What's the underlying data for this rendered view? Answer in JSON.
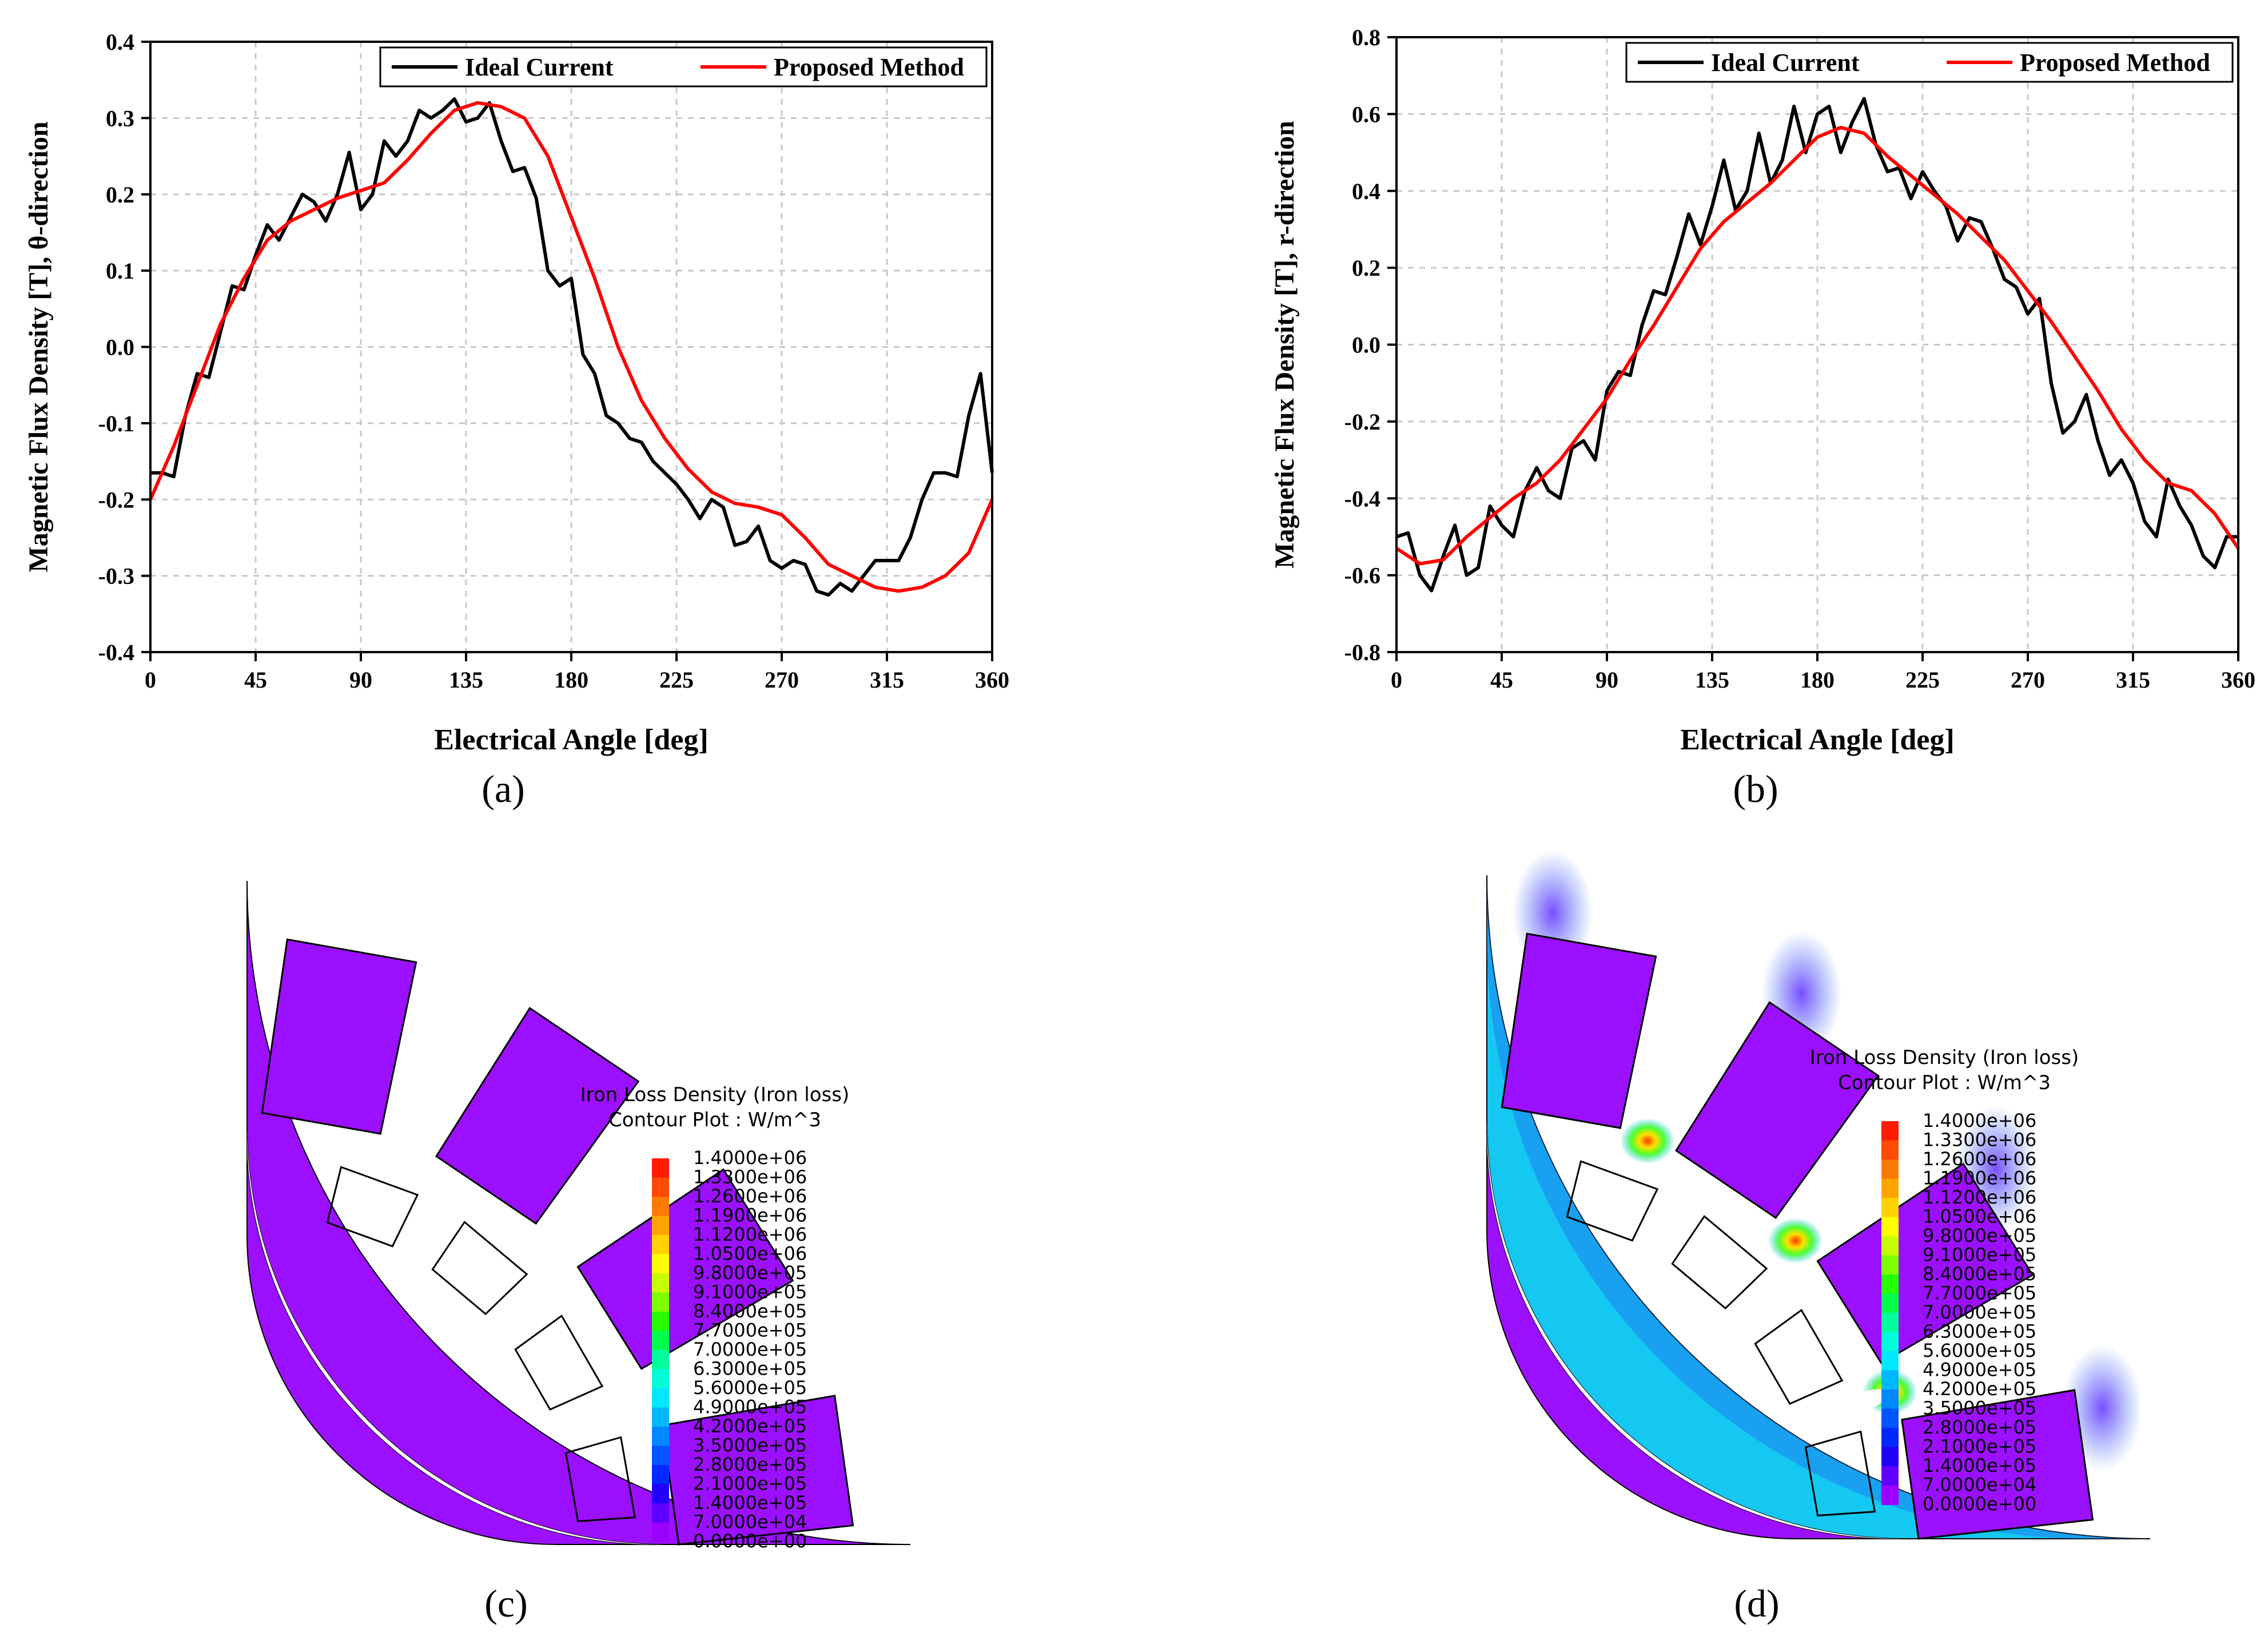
{
  "figure": {
    "panel_labels": [
      "(a)",
      "(b)",
      "(c)",
      "(d)"
    ]
  },
  "chart_data": [
    {
      "type": "line",
      "panel": "(a)",
      "xlabel": "Electrical Angle [deg]",
      "ylabel": "Magnetic Flux Density [T], θ-direction",
      "xlim": [
        0,
        360
      ],
      "ylim": [
        -0.4,
        0.4
      ],
      "xticks": [
        "0",
        "45",
        "90",
        "135",
        "180",
        "225",
        "270",
        "315",
        "360"
      ],
      "yticks": [
        "-0.4",
        "-0.3",
        "-0.2",
        "-0.1",
        "0.0",
        "0.1",
        "0.2",
        "0.3",
        "0.4"
      ],
      "grid": true,
      "legend_position": "top-right",
      "series": [
        {
          "name": "Ideal Current",
          "color": "#000000",
          "x": [
            0,
            5,
            10,
            15,
            20,
            25,
            30,
            35,
            40,
            45,
            50,
            55,
            60,
            65,
            70,
            75,
            80,
            85,
            90,
            95,
            100,
            105,
            110,
            115,
            120,
            125,
            130,
            135,
            140,
            145,
            150,
            155,
            160,
            165,
            170,
            175,
            180,
            185,
            190,
            195,
            200,
            205,
            210,
            215,
            220,
            225,
            230,
            235,
            240,
            245,
            250,
            255,
            260,
            265,
            270,
            275,
            280,
            285,
            290,
            295,
            300,
            305,
            310,
            315,
            320,
            325,
            330,
            335,
            340,
            345,
            350,
            355,
            360
          ],
          "y": [
            -0.165,
            -0.165,
            -0.17,
            -0.09,
            -0.035,
            -0.04,
            0.02,
            0.08,
            0.075,
            0.12,
            0.16,
            0.14,
            0.17,
            0.2,
            0.19,
            0.165,
            0.2,
            0.255,
            0.18,
            0.2,
            0.27,
            0.25,
            0.27,
            0.31,
            0.3,
            0.31,
            0.325,
            0.295,
            0.3,
            0.32,
            0.27,
            0.23,
            0.235,
            0.195,
            0.1,
            0.08,
            0.09,
            -0.01,
            -0.035,
            -0.09,
            -0.1,
            -0.12,
            -0.125,
            -0.15,
            -0.165,
            -0.18,
            -0.2,
            -0.225,
            -0.2,
            -0.21,
            -0.26,
            -0.255,
            -0.235,
            -0.28,
            -0.29,
            -0.28,
            -0.285,
            -0.32,
            -0.325,
            -0.31,
            -0.32,
            -0.3,
            -0.28,
            -0.28,
            -0.28,
            -0.25,
            -0.2,
            -0.165,
            -0.165,
            -0.17,
            -0.09,
            -0.035,
            -0.165
          ]
        },
        {
          "name": "Proposed Method",
          "color": "#ff0000",
          "x": [
            0,
            10,
            20,
            30,
            40,
            50,
            60,
            70,
            80,
            90,
            100,
            110,
            120,
            130,
            140,
            150,
            160,
            170,
            180,
            190,
            200,
            210,
            220,
            230,
            240,
            250,
            260,
            270,
            280,
            290,
            300,
            310,
            320,
            330,
            340,
            350,
            360
          ],
          "y": [
            -0.2,
            -0.13,
            -0.05,
            0.03,
            0.09,
            0.14,
            0.165,
            0.18,
            0.195,
            0.205,
            0.215,
            0.245,
            0.28,
            0.31,
            0.32,
            0.315,
            0.3,
            0.25,
            0.17,
            0.09,
            0.0,
            -0.07,
            -0.12,
            -0.16,
            -0.19,
            -0.205,
            -0.21,
            -0.22,
            -0.25,
            -0.285,
            -0.3,
            -0.315,
            -0.32,
            -0.315,
            -0.3,
            -0.27,
            -0.2
          ]
        }
      ]
    },
    {
      "type": "line",
      "panel": "(b)",
      "xlabel": "Electrical Angle [deg]",
      "ylabel": "Magnetic Flux Density [T], r-direction",
      "xlim": [
        0,
        360
      ],
      "ylim": [
        -0.8,
        0.8
      ],
      "xticks": [
        "0",
        "45",
        "90",
        "135",
        "180",
        "225",
        "270",
        "315",
        "360"
      ],
      "yticks": [
        "-0.8",
        "-0.6",
        "-0.4",
        "-0.2",
        "0.0",
        "0.2",
        "0.4",
        "0.6",
        "0.8"
      ],
      "grid": true,
      "legend_position": "top-right",
      "series": [
        {
          "name": "Ideal Current",
          "color": "#000000",
          "x": [
            0,
            5,
            10,
            15,
            20,
            25,
            30,
            35,
            40,
            45,
            50,
            55,
            60,
            65,
            70,
            75,
            80,
            85,
            90,
            95,
            100,
            105,
            110,
            115,
            120,
            125,
            130,
            135,
            140,
            145,
            150,
            155,
            160,
            165,
            170,
            175,
            180,
            185,
            190,
            195,
            200,
            205,
            210,
            215,
            220,
            225,
            230,
            235,
            240,
            245,
            250,
            255,
            260,
            265,
            270,
            275,
            280,
            285,
            290,
            295,
            300,
            305,
            310,
            315,
            320,
            325,
            330,
            335,
            340,
            345,
            350,
            355,
            360
          ],
          "y": [
            -0.5,
            -0.49,
            -0.6,
            -0.64,
            -0.55,
            -0.47,
            -0.6,
            -0.58,
            -0.42,
            -0.47,
            -0.5,
            -0.38,
            -0.32,
            -0.38,
            -0.4,
            -0.27,
            -0.25,
            -0.3,
            -0.12,
            -0.07,
            -0.08,
            0.05,
            0.14,
            0.13,
            0.23,
            0.34,
            0.26,
            0.36,
            0.48,
            0.35,
            0.4,
            0.55,
            0.42,
            0.48,
            0.62,
            0.5,
            0.6,
            0.62,
            0.5,
            0.58,
            0.64,
            0.52,
            0.45,
            0.46,
            0.38,
            0.45,
            0.4,
            0.36,
            0.27,
            0.33,
            0.32,
            0.25,
            0.17,
            0.15,
            0.08,
            0.12,
            -0.1,
            -0.23,
            -0.2,
            -0.13,
            -0.25,
            -0.34,
            -0.3,
            -0.36,
            -0.46,
            -0.5,
            -0.35,
            -0.42,
            -0.47,
            -0.55,
            -0.58,
            -0.5,
            -0.5
          ]
        },
        {
          "name": "Proposed Method",
          "color": "#ff0000",
          "x": [
            0,
            10,
            20,
            30,
            40,
            50,
            60,
            70,
            80,
            90,
            100,
            110,
            120,
            130,
            140,
            150,
            160,
            170,
            180,
            190,
            200,
            210,
            220,
            230,
            240,
            250,
            260,
            270,
            280,
            290,
            300,
            310,
            320,
            330,
            340,
            350,
            360
          ],
          "y": [
            -0.53,
            -0.57,
            -0.56,
            -0.5,
            -0.45,
            -0.4,
            -0.36,
            -0.3,
            -0.22,
            -0.14,
            -0.04,
            0.05,
            0.15,
            0.25,
            0.32,
            0.37,
            0.42,
            0.48,
            0.54,
            0.565,
            0.55,
            0.49,
            0.44,
            0.39,
            0.34,
            0.28,
            0.22,
            0.14,
            0.06,
            -0.03,
            -0.12,
            -0.22,
            -0.3,
            -0.36,
            -0.38,
            -0.44,
            -0.53
          ]
        }
      ]
    }
  ],
  "contour_plots": [
    {
      "panel": "(c)",
      "legend_title_1": "Iron Loss Density (Iron loss)",
      "legend_title_2": "Contour Plot : W/m^3",
      "levels": [
        "1.4000e+06",
        "1.3300e+06",
        "1.2600e+06",
        "1.1900e+06",
        "1.1200e+06",
        "1.0500e+06",
        "9.8000e+05",
        "9.1000e+05",
        "8.4000e+05",
        "7.7000e+05",
        "7.0000e+05",
        "6.3000e+05",
        "5.6000e+05",
        "4.9000e+05",
        "4.2000e+05",
        "3.5000e+05",
        "2.8000e+05",
        "2.1000e+05",
        "1.4000e+05",
        "7.0000e+04",
        "0.0000e+00"
      ]
    },
    {
      "panel": "(d)",
      "legend_title_1": "Iron Loss Density (Iron loss)",
      "legend_title_2": "Contour Plot : W/m^3",
      "levels": [
        "1.4000e+06",
        "1.3300e+06",
        "1.2600e+06",
        "1.1900e+06",
        "1.1200e+06",
        "1.0500e+06",
        "9.8000e+05",
        "9.1000e+05",
        "8.4000e+05",
        "7.7000e+05",
        "7.0000e+05",
        "6.3000e+05",
        "5.6000e+05",
        "4.9000e+05",
        "4.2000e+05",
        "3.5000e+05",
        "2.8000e+05",
        "2.1000e+05",
        "1.4000e+05",
        "7.0000e+04",
        "0.0000e+00"
      ]
    }
  ],
  "colors": {
    "low": "#9b10ff",
    "mid_blue": "#15c8f2",
    "colormap": [
      "#ff1a00",
      "#ff4a00",
      "#ff7a00",
      "#ffa400",
      "#ffd200",
      "#ffff00",
      "#c8ff00",
      "#7dff00",
      "#25ff00",
      "#00ff48",
      "#00ff9a",
      "#00ffd8",
      "#00e8ff",
      "#00b8ff",
      "#0088ff",
      "#0055ff",
      "#0028ff",
      "#2000ff",
      "#6000ff",
      "#9b00ff"
    ]
  }
}
